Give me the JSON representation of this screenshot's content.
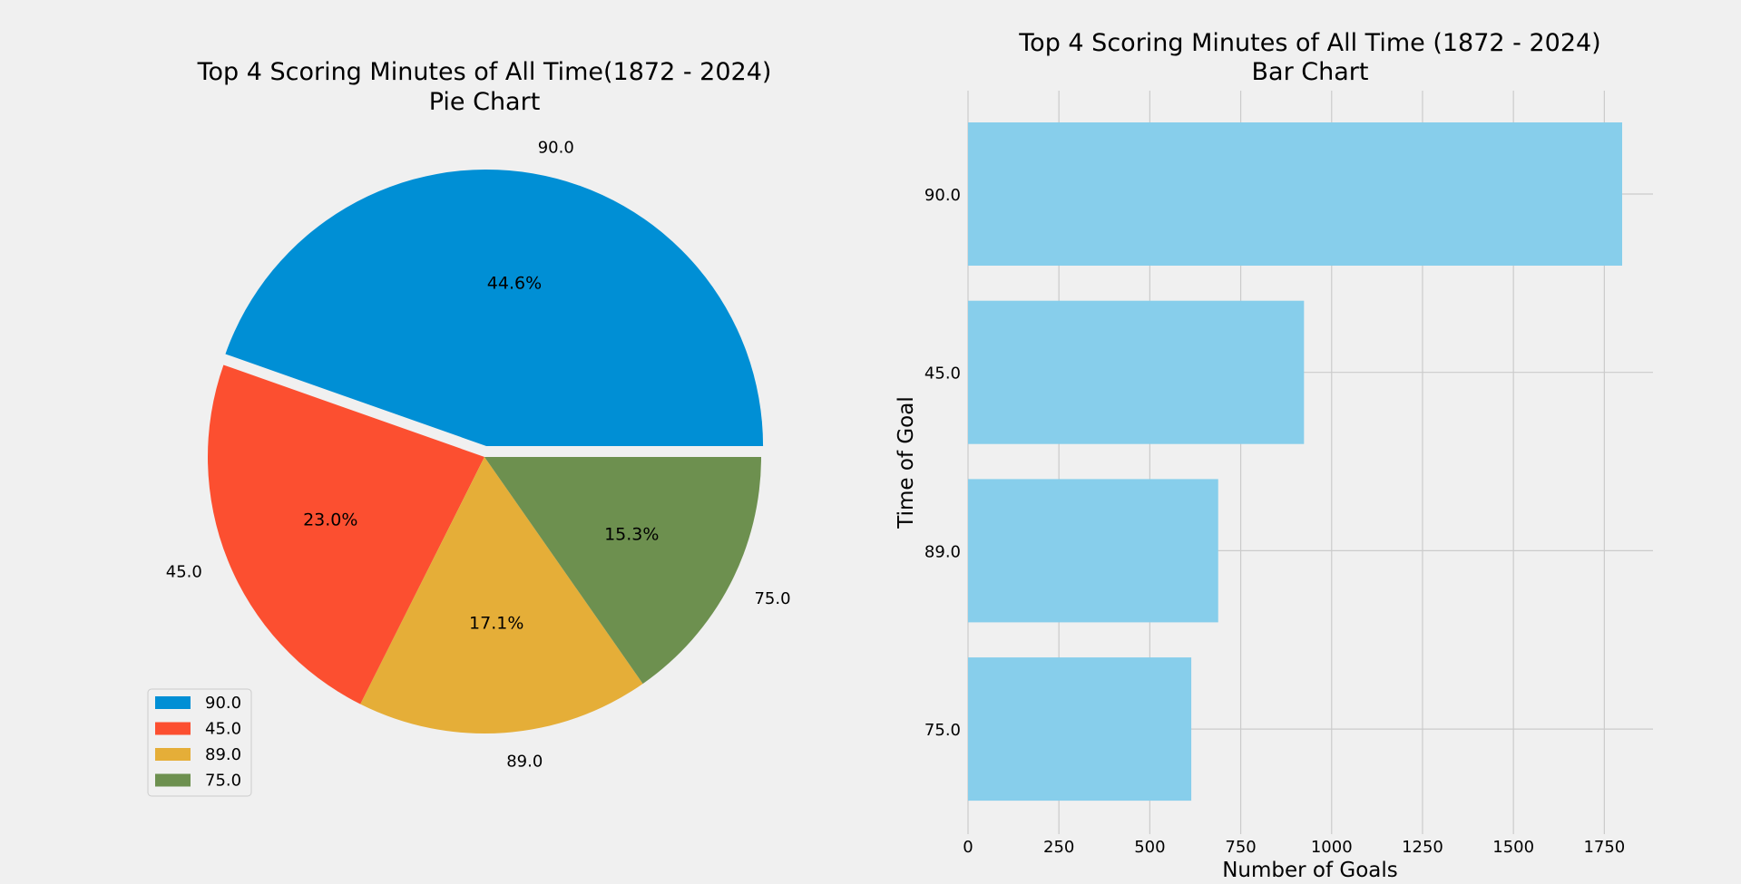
{
  "chart_data": [
    {
      "type": "pie",
      "title": "Top 4 Scoring Minutes of All Time(1872 - 2024)",
      "subtitle": "Pie Chart",
      "labels": [
        "90.0",
        "45.0",
        "89.0",
        "75.0"
      ],
      "percentages": [
        44.6,
        23.0,
        17.1,
        15.3
      ],
      "percent_labels": [
        "44.6%",
        "23.0%",
        "17.1%",
        "15.3%"
      ],
      "colors": [
        "#008fd5",
        "#fc4f30",
        "#e5ae38",
        "#6d904f"
      ],
      "exploded": "90.0",
      "legend": {
        "placement": "lower-left",
        "entries": [
          "90.0",
          "45.0",
          "89.0",
          "75.0"
        ]
      }
    },
    {
      "type": "bar",
      "orientation": "horizontal",
      "title": "Top 4 Scoring Minutes of All Time (1872 - 2024)",
      "subtitle": "Bar Chart",
      "categories": [
        "90.0",
        "45.0",
        "89.0",
        "75.0"
      ],
      "values": [
        1799,
        924,
        688,
        614
      ],
      "color": "#87ceeb",
      "xlabel": "Number of Goals",
      "ylabel": "Time of Goal",
      "xticks": [
        0,
        250,
        500,
        750,
        1000,
        1250,
        1500,
        1750
      ],
      "xlim": [
        0,
        1890
      ],
      "grid": true
    }
  ]
}
